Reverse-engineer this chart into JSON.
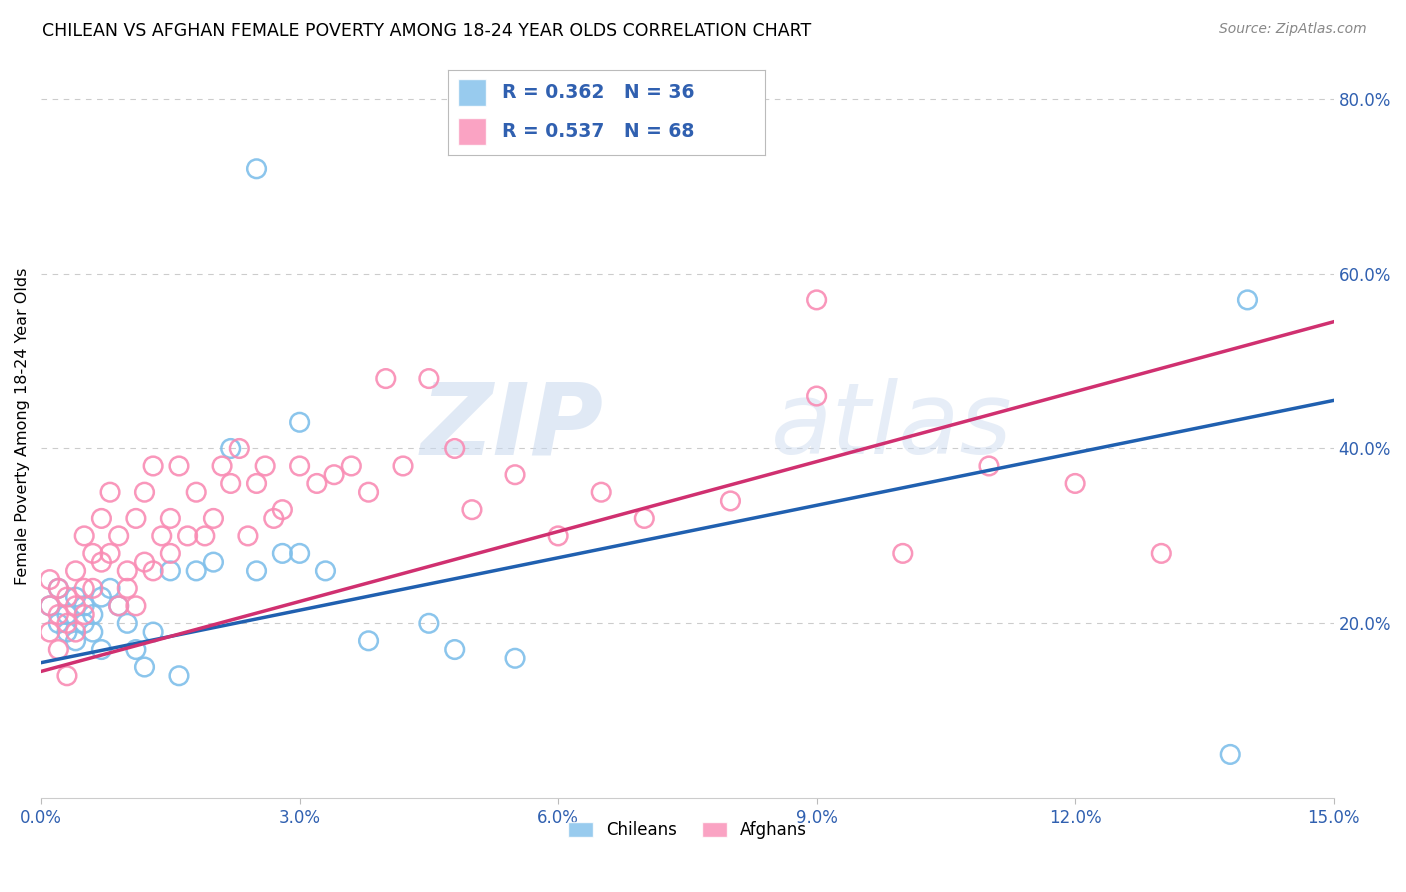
{
  "title": "CHILEAN VS AFGHAN FEMALE POVERTY AMONG 18-24 YEAR OLDS CORRELATION CHART",
  "source": "Source: ZipAtlas.com",
  "ylabel": "Female Poverty Among 18-24 Year Olds",
  "xlim": [
    0.0,
    0.15
  ],
  "ylim": [
    0.0,
    0.85
  ],
  "xtick_vals": [
    0.0,
    0.03,
    0.06,
    0.09,
    0.12,
    0.15
  ],
  "ytick_right_vals": [
    0.2,
    0.4,
    0.6,
    0.8
  ],
  "chilean_R": 0.362,
  "chilean_N": 36,
  "afghan_R": 0.537,
  "afghan_N": 68,
  "chilean_color": "#7fbfea",
  "afghan_color": "#f98cb4",
  "chilean_line_color": "#2060b0",
  "afghan_line_color": "#d03070",
  "background_color": "#ffffff",
  "grid_color": "#cccccc",
  "watermark_zip": "ZIP",
  "watermark_atlas": "atlas",
  "legend_text_color": "#3060b0",
  "tick_color": "#3060b0",
  "chilean_x": [
    0.001,
    0.002,
    0.002,
    0.003,
    0.003,
    0.004,
    0.004,
    0.005,
    0.005,
    0.006,
    0.006,
    0.007,
    0.007,
    0.008,
    0.009,
    0.01,
    0.011,
    0.012,
    0.013,
    0.015,
    0.016,
    0.018,
    0.02,
    0.022,
    0.025,
    0.028,
    0.03,
    0.033,
    0.038,
    0.045,
    0.048,
    0.055,
    0.025,
    0.03,
    0.14,
    0.138
  ],
  "chilean_y": [
    0.22,
    0.24,
    0.2,
    0.21,
    0.19,
    0.23,
    0.18,
    0.22,
    0.2,
    0.21,
    0.19,
    0.23,
    0.17,
    0.24,
    0.22,
    0.2,
    0.17,
    0.15,
    0.19,
    0.26,
    0.14,
    0.26,
    0.27,
    0.4,
    0.26,
    0.28,
    0.28,
    0.26,
    0.18,
    0.2,
    0.17,
    0.16,
    0.72,
    0.43,
    0.57,
    0.05
  ],
  "afghan_x": [
    0.001,
    0.001,
    0.001,
    0.002,
    0.002,
    0.002,
    0.003,
    0.003,
    0.003,
    0.004,
    0.004,
    0.004,
    0.005,
    0.005,
    0.005,
    0.006,
    0.006,
    0.007,
    0.007,
    0.008,
    0.008,
    0.009,
    0.009,
    0.01,
    0.01,
    0.011,
    0.011,
    0.012,
    0.012,
    0.013,
    0.013,
    0.014,
    0.015,
    0.015,
    0.016,
    0.017,
    0.018,
    0.019,
    0.02,
    0.021,
    0.022,
    0.023,
    0.024,
    0.025,
    0.026,
    0.027,
    0.028,
    0.03,
    0.032,
    0.034,
    0.036,
    0.038,
    0.04,
    0.042,
    0.045,
    0.048,
    0.05,
    0.055,
    0.06,
    0.065,
    0.07,
    0.08,
    0.09,
    0.1,
    0.11,
    0.12,
    0.13,
    0.09
  ],
  "afghan_y": [
    0.25,
    0.22,
    0.19,
    0.24,
    0.21,
    0.17,
    0.23,
    0.2,
    0.14,
    0.22,
    0.19,
    0.26,
    0.24,
    0.21,
    0.3,
    0.28,
    0.24,
    0.32,
    0.27,
    0.35,
    0.28,
    0.22,
    0.3,
    0.26,
    0.24,
    0.32,
    0.22,
    0.35,
    0.27,
    0.38,
    0.26,
    0.3,
    0.28,
    0.32,
    0.38,
    0.3,
    0.35,
    0.3,
    0.32,
    0.38,
    0.36,
    0.4,
    0.3,
    0.36,
    0.38,
    0.32,
    0.33,
    0.38,
    0.36,
    0.37,
    0.38,
    0.35,
    0.48,
    0.38,
    0.48,
    0.4,
    0.33,
    0.37,
    0.3,
    0.35,
    0.32,
    0.34,
    0.46,
    0.28,
    0.38,
    0.36,
    0.28,
    0.57
  ],
  "chilean_line_x": [
    0.0,
    0.15
  ],
  "chilean_line_y": [
    0.155,
    0.455
  ],
  "afghan_line_x": [
    0.0,
    0.15
  ],
  "afghan_line_y": [
    0.145,
    0.545
  ]
}
